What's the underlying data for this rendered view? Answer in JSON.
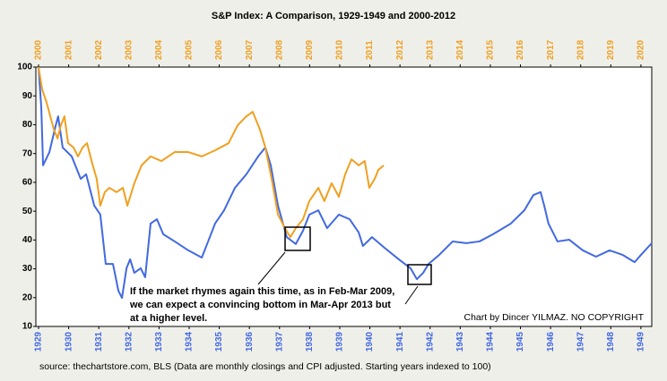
{
  "chart_data": {
    "type": "line",
    "title": "S&P Index: A Comparison, 1929-1949 and 2000-2012",
    "xlim": [
      1928.91,
      1949.36
    ],
    "xticks": [
      1929,
      1930,
      1931,
      1932,
      1933,
      1934,
      1935,
      1936,
      1937,
      1938,
      1939,
      1940,
      1941,
      1942,
      1943,
      1944,
      1945,
      1946,
      1947,
      1948,
      1949
    ],
    "x2lim": [
      1999.91,
      2020.36
    ],
    "x2ticks": [
      2000,
      2001,
      2002,
      2003,
      2004,
      2005,
      2006,
      2007,
      2008,
      2009,
      2010,
      2011,
      2012,
      2013,
      2014,
      2015,
      2016,
      2017,
      2018,
      2019,
      2020
    ],
    "ylim": [
      10,
      100
    ],
    "yticks": [
      10,
      20,
      30,
      40,
      50,
      60,
      70,
      80,
      90,
      100
    ],
    "grid": false,
    "xtick_color": "#4169e1",
    "x2tick_color": "#f0a020",
    "series": [
      {
        "color": "#4169e1",
        "x": [
          1929.0,
          1929.09,
          1929.15,
          1929.36,
          1929.57,
          1929.65,
          1929.8,
          1930.1,
          1930.4,
          1930.58,
          1930.85,
          1931.05,
          1931.23,
          1931.47,
          1931.65,
          1931.77,
          1931.92,
          1932.04,
          1932.18,
          1932.39,
          1932.54,
          1932.72,
          1932.93,
          1933.14,
          1933.52,
          1933.97,
          1934.42,
          1934.63,
          1934.86,
          1935.16,
          1935.52,
          1935.9,
          1936.29,
          1936.53,
          1936.71,
          1936.95,
          1937.24,
          1937.54,
          1937.78,
          1937.99,
          1938.29,
          1938.58,
          1938.97,
          1939.33,
          1939.63,
          1939.77,
          1940.07,
          1940.52,
          1940.96,
          1941.35,
          1941.56,
          1941.77,
          1941.95,
          1942.3,
          1942.75,
          1943.2,
          1943.64,
          1944.09,
          1944.68,
          1945.13,
          1945.43,
          1945.67,
          1945.79,
          1945.93,
          1946.23,
          1946.62,
          1947.07,
          1947.51,
          1947.96,
          1948.4,
          1948.79,
          1949.0,
          1949.36
        ],
        "values": [
          100,
          86.0,
          65.9,
          70.5,
          79.8,
          82.9,
          72.1,
          69.0,
          61.2,
          62.8,
          51.9,
          48.8,
          31.7,
          31.7,
          22.4,
          19.9,
          30.2,
          33.3,
          28.6,
          30.2,
          27.1,
          45.7,
          47.2,
          42.0,
          39.5,
          36.4,
          33.9,
          39.5,
          45.7,
          50.3,
          58.1,
          62.8,
          69.0,
          72.1,
          65.9,
          51.9,
          41.0,
          38.6,
          43.2,
          48.8,
          50.3,
          44.1,
          48.8,
          47.2,
          42.6,
          37.9,
          41.0,
          37.0,
          33.3,
          30.2,
          26.4,
          28.6,
          31.7,
          34.8,
          39.5,
          38.9,
          39.5,
          42.0,
          45.7,
          50.3,
          55.6,
          56.6,
          51.9,
          45.7,
          39.5,
          40.1,
          36.4,
          34.2,
          36.4,
          34.8,
          32.3,
          34.8,
          38.9
        ]
      },
      {
        "color": "#f0a020",
        "axis": "x2",
        "x": [
          2000.0,
          2000.12,
          2000.27,
          2000.39,
          2000.51,
          2000.63,
          2000.74,
          2000.86,
          2000.98,
          2001.16,
          2001.31,
          2001.46,
          2001.61,
          2001.76,
          2001.93,
          2002.05,
          2002.2,
          2002.35,
          2002.59,
          2002.8,
          2002.95,
          2003.18,
          2003.42,
          2003.72,
          2004.08,
          2004.52,
          2004.97,
          2005.42,
          2005.86,
          2006.31,
          2006.61,
          2006.9,
          2007.11,
          2007.35,
          2007.53,
          2007.74,
          2007.95,
          2008.18,
          2008.36,
          2008.54,
          2008.78,
          2008.99,
          2009.29,
          2009.49,
          2009.73,
          2009.97,
          2010.18,
          2010.39,
          2010.63,
          2010.83,
          2010.98,
          2011.16,
          2011.28,
          2011.46
        ],
        "values": [
          100,
          92.2,
          87.6,
          82.9,
          78.3,
          75.2,
          79.8,
          82.9,
          73.6,
          72.1,
          69.0,
          72.1,
          73.6,
          67.4,
          61.2,
          51.9,
          56.6,
          58.1,
          56.6,
          58.1,
          51.9,
          59.7,
          65.9,
          69.0,
          67.4,
          70.5,
          70.5,
          69.0,
          71.1,
          73.6,
          79.8,
          82.9,
          84.5,
          78.3,
          72.1,
          61.2,
          48.8,
          44.1,
          41.0,
          44.1,
          47.2,
          53.5,
          58.1,
          53.5,
          59.7,
          55.0,
          62.8,
          68.0,
          65.9,
          67.4,
          58.1,
          61.2,
          64.3,
          65.9
        ]
      }
    ],
    "annotation": [
      "If the market rhymes again this time, as in Feb-Mar 2009,",
      "we can expect a convincing bottom in Mar-Apr 2013 but",
      "at a higher level."
    ],
    "credit": "Chart by Dincer YILMAZ. NO COPYRIGHT",
    "source": "source: thechartstore.com, BLS (Data are monthly closings and CPI adjusted. Starting years indexed to 100)"
  }
}
